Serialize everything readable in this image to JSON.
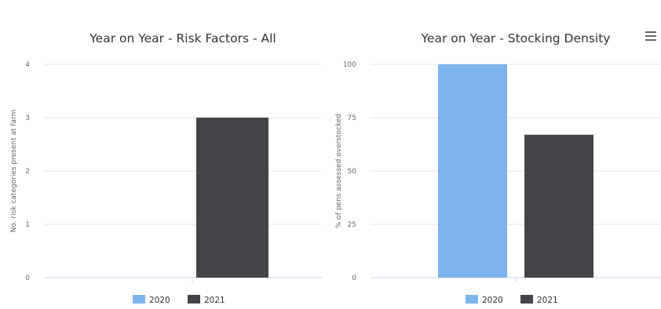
{
  "chart_data": [
    {
      "type": "bar",
      "title": "Year on Year - Risk Factors - All",
      "ylabel": "No. risk categories present at farm",
      "categories": [
        ""
      ],
      "series": [
        {
          "name": "2020",
          "values": [
            0
          ],
          "color": "#7cb5ec"
        },
        {
          "name": "2021",
          "values": [
            3
          ],
          "color": "#434348"
        }
      ],
      "ylim": [
        0,
        4
      ],
      "yticks": [
        0,
        1,
        2,
        3,
        4
      ],
      "grid": true,
      "legend": "bottom-center"
    },
    {
      "type": "bar",
      "title": "Year on Year - Stocking Density",
      "ylabel": "% of pens assessed overstocked",
      "categories": [
        ""
      ],
      "series": [
        {
          "name": "2020",
          "values": [
            100
          ],
          "color": "#7cb5ec"
        },
        {
          "name": "2021",
          "values": [
            67
          ],
          "color": "#434348"
        }
      ],
      "ylim": [
        0,
        100
      ],
      "yticks": [
        0,
        25,
        50,
        75,
        100
      ],
      "grid": true,
      "legend": "bottom-center"
    }
  ],
  "menu": {
    "icon": "hamburger-menu-icon"
  }
}
